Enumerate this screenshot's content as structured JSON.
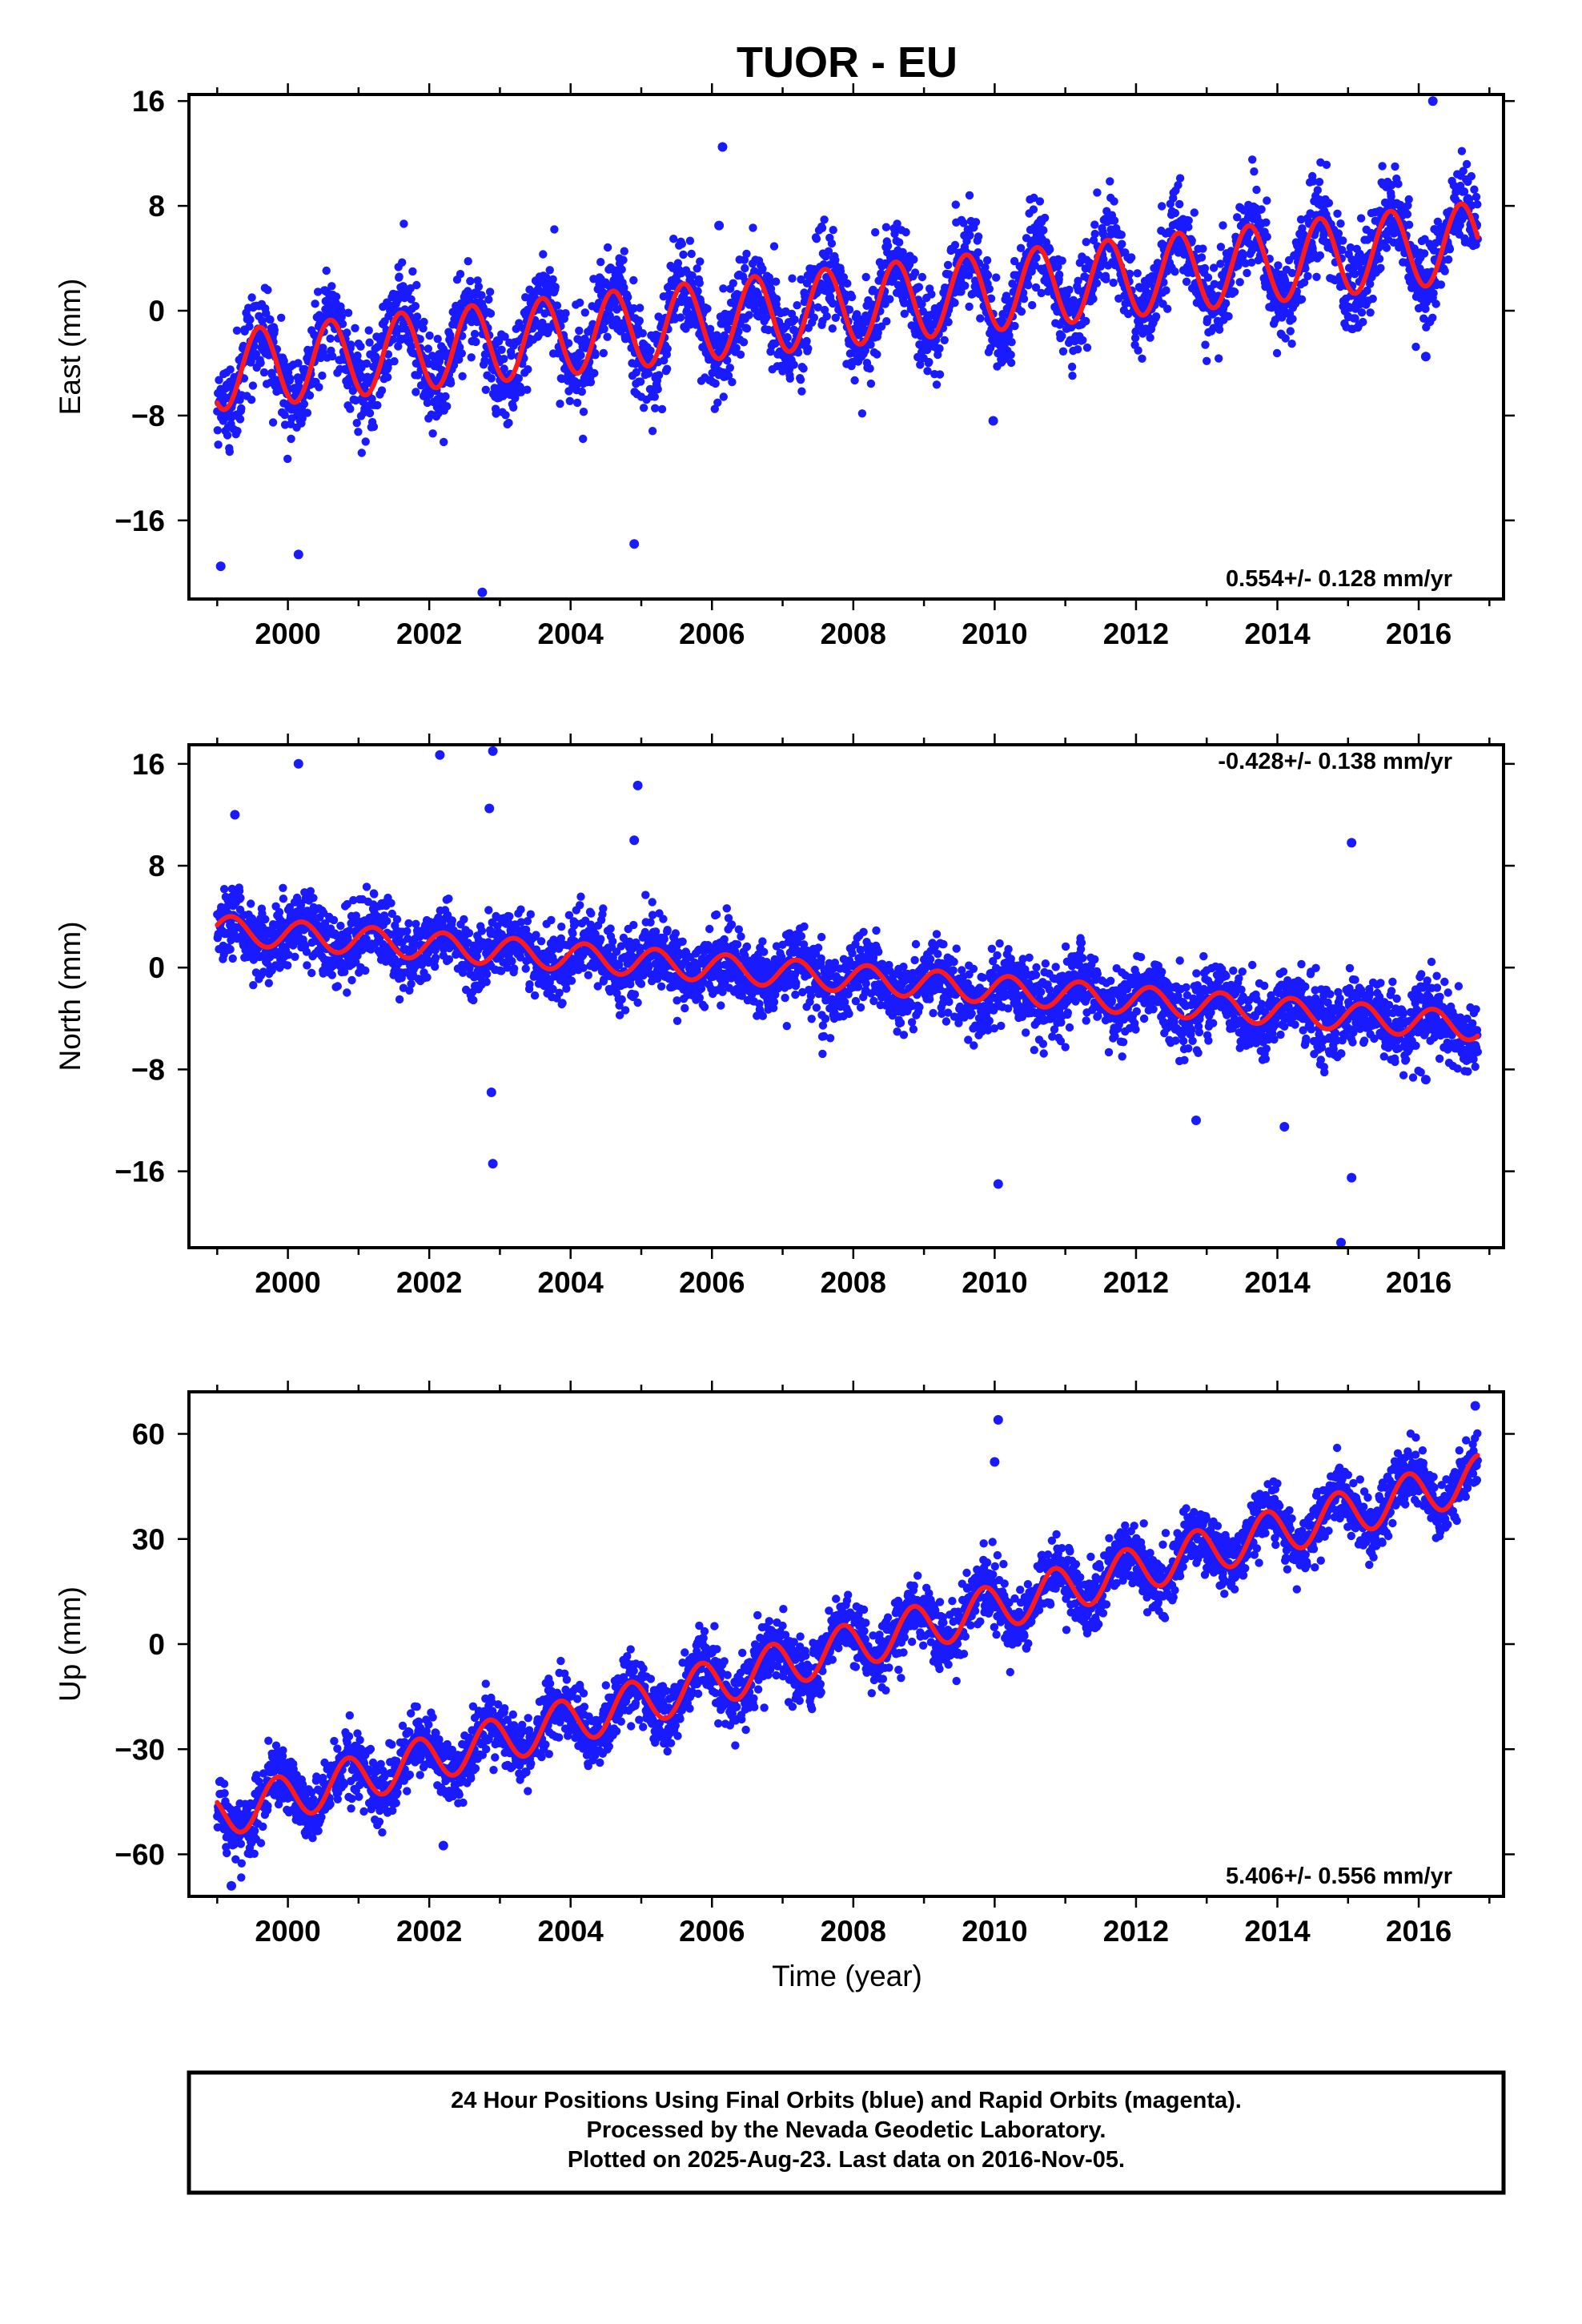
{
  "chart_data": {
    "type": "scatter",
    "title": "TUOR - EU",
    "xlabel": "Time (year)",
    "xlim": [
      1998.6,
      2017.2
    ],
    "x_ticks": [
      2000,
      2002,
      2004,
      2006,
      2008,
      2010,
      2012,
      2014,
      2016
    ],
    "panels": [
      {
        "name": "east",
        "ylabel": "East (mm)",
        "ylim": [
          -22.0,
          16.5
        ],
        "y_ticks": [
          16,
          8,
          0,
          -8,
          -16
        ],
        "rate_label": "0.554+/- 0.128 mm/yr",
        "rate_position": "bottom-right",
        "start_year": 1999.0,
        "end_year": 2016.84,
        "fit_offset": -4.6,
        "fit_trend": 0.554,
        "fit_amplitude": 3.0,
        "fit_phase_year": 2000.35,
        "scatter_sigma": 1.7,
        "outliers": [
          {
            "x": 1999.05,
            "y": -19.5
          },
          {
            "x": 2000.15,
            "y": -18.6
          },
          {
            "x": 2002.75,
            "y": -21.5
          },
          {
            "x": 2004.9,
            "y": -17.8
          },
          {
            "x": 2006.15,
            "y": 12.5
          },
          {
            "x": 2006.1,
            "y": 6.5
          },
          {
            "x": 2016.2,
            "y": 16.0
          },
          {
            "x": 2009.98,
            "y": -8.4
          },
          {
            "x": 2016.1,
            "y": -3.5
          }
        ]
      },
      {
        "name": "north",
        "ylabel": "North (mm)",
        "ylim": [
          -22.0,
          17.5
        ],
        "y_ticks": [
          16,
          8,
          0,
          -8,
          -16
        ],
        "rate_label": "-0.428+/- 0.138 mm/yr",
        "rate_position": "top-right",
        "start_year": 1999.0,
        "end_year": 2016.84,
        "fit_offset": 3.0,
        "fit_trend": -0.428,
        "fit_amplitude": 1.1,
        "fit_phase_year": 1999.95,
        "scatter_sigma": 1.4,
        "outliers": [
          {
            "x": 1999.25,
            "y": 12.0
          },
          {
            "x": 2000.15,
            "y": 16.0
          },
          {
            "x": 2002.15,
            "y": 16.7
          },
          {
            "x": 2002.9,
            "y": 17.0
          },
          {
            "x": 2002.85,
            "y": 12.5
          },
          {
            "x": 2002.88,
            "y": -9.8
          },
          {
            "x": 2002.9,
            "y": -15.4
          },
          {
            "x": 2004.95,
            "y": 14.3
          },
          {
            "x": 2004.9,
            "y": 10.0
          },
          {
            "x": 2010.05,
            "y": -17.0
          },
          {
            "x": 2012.85,
            "y": -12.0
          },
          {
            "x": 2014.1,
            "y": -12.5
          },
          {
            "x": 2014.9,
            "y": -21.6
          },
          {
            "x": 2015.05,
            "y": -16.5
          },
          {
            "x": 2015.05,
            "y": 9.8
          },
          {
            "x": 2016.1,
            "y": -8.8
          }
        ]
      },
      {
        "name": "up",
        "ylabel": "Up (mm)",
        "ylim": [
          -72.0,
          72.0
        ],
        "y_ticks": [
          60,
          30,
          0,
          -30,
          -60
        ],
        "rate_label": "5.406+/- 0.556 mm/yr",
        "rate_position": "bottom-right",
        "start_year": 1999.0,
        "end_year": 2016.84,
        "fit_offset": -49.0,
        "fit_trend": 5.406,
        "fit_amplitude": 6.5,
        "fit_phase_year": 1999.6,
        "scatter_sigma": 4.5,
        "outliers": [
          {
            "x": 2010.05,
            "y": 64.0
          },
          {
            "x": 2010.0,
            "y": 52.0
          },
          {
            "x": 2016.8,
            "y": 68.0
          },
          {
            "x": 2002.2,
            "y": -57.5
          },
          {
            "x": 1999.2,
            "y": -69.0
          }
        ]
      }
    ]
  },
  "footer": {
    "line1": "24 Hour Positions Using Final Orbits (blue) and Rapid Orbits (magenta).",
    "line2": "Processed by the Nevada Geodetic Laboratory.",
    "line3": "Plotted on 2025-Aug-23. Last data on 2016-Nov-05."
  },
  "colors": {
    "points": "#1a1aff",
    "fit": "#ff1a1a",
    "frame": "#000000"
  }
}
